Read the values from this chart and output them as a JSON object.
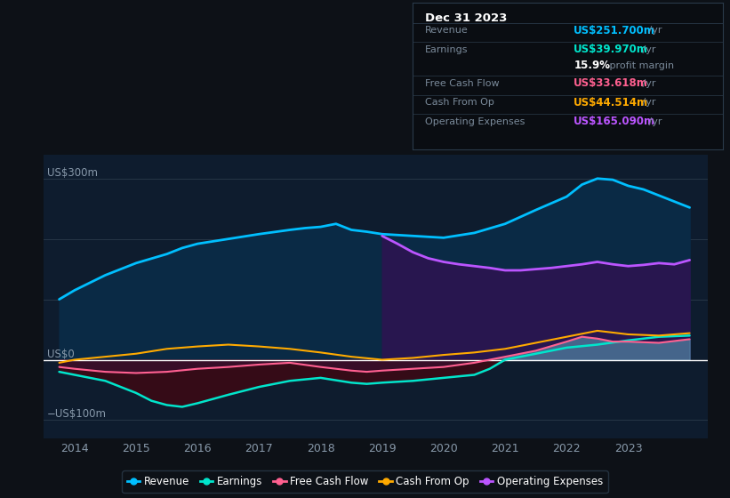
{
  "bg_color": "#0d1117",
  "plot_bg_color": "#0e1c2e",
  "colors": {
    "revenue": "#00bfff",
    "earnings": "#00e5cc",
    "free_cash_flow": "#ff6090",
    "cash_from_op": "#ffaa00",
    "op_expenses": "#bb55ff"
  },
  "legend": [
    {
      "label": "Revenue",
      "color": "#00bfff"
    },
    {
      "label": "Earnings",
      "color": "#00e5cc"
    },
    {
      "label": "Free Cash Flow",
      "color": "#ff6090"
    },
    {
      "label": "Cash From Op",
      "color": "#ffaa00"
    },
    {
      "label": "Operating Expenses",
      "color": "#bb55ff"
    }
  ],
  "xlim": [
    2013.5,
    2024.3
  ],
  "ylim": [
    -130,
    340
  ],
  "xticks": [
    2014,
    2015,
    2016,
    2017,
    2018,
    2019,
    2020,
    2021,
    2022,
    2023
  ],
  "revenue_x": [
    2013.75,
    2014.0,
    2014.5,
    2015.0,
    2015.5,
    2015.75,
    2016.0,
    2016.5,
    2017.0,
    2017.5,
    2017.75,
    2018.0,
    2018.25,
    2018.5,
    2018.75,
    2019.0,
    2019.5,
    2020.0,
    2020.5,
    2021.0,
    2021.5,
    2022.0,
    2022.25,
    2022.5,
    2022.75,
    2023.0,
    2023.25,
    2023.5,
    2023.75,
    2024.0
  ],
  "revenue_y": [
    100,
    115,
    140,
    160,
    175,
    185,
    192,
    200,
    208,
    215,
    218,
    220,
    225,
    215,
    212,
    208,
    205,
    202,
    210,
    225,
    248,
    270,
    290,
    300,
    298,
    288,
    282,
    272,
    262,
    252
  ],
  "earnings_x": [
    2013.75,
    2014.0,
    2014.5,
    2015.0,
    2015.25,
    2015.5,
    2015.75,
    2016.0,
    2016.5,
    2017.0,
    2017.5,
    2018.0,
    2018.5,
    2018.75,
    2019.0,
    2019.5,
    2020.0,
    2020.5,
    2020.75,
    2021.0,
    2021.5,
    2022.0,
    2022.5,
    2023.0,
    2023.5,
    2024.0
  ],
  "earnings_y": [
    -20,
    -25,
    -35,
    -55,
    -68,
    -75,
    -78,
    -72,
    -58,
    -45,
    -35,
    -30,
    -38,
    -40,
    -38,
    -35,
    -30,
    -25,
    -15,
    0,
    10,
    20,
    25,
    32,
    38,
    40
  ],
  "fcf_x": [
    2013.75,
    2014.0,
    2014.5,
    2015.0,
    2015.5,
    2016.0,
    2016.5,
    2017.0,
    2017.5,
    2018.0,
    2018.5,
    2018.75,
    2019.0,
    2019.5,
    2020.0,
    2020.5,
    2021.0,
    2021.5,
    2022.0,
    2022.25,
    2022.5,
    2022.75,
    2023.0,
    2023.5,
    2024.0
  ],
  "fcf_y": [
    -12,
    -15,
    -20,
    -22,
    -20,
    -15,
    -12,
    -8,
    -5,
    -12,
    -18,
    -20,
    -18,
    -15,
    -12,
    -5,
    5,
    15,
    30,
    38,
    35,
    30,
    30,
    28,
    34
  ],
  "cop_x": [
    2013.75,
    2014.0,
    2014.5,
    2015.0,
    2015.5,
    2016.0,
    2016.5,
    2017.0,
    2017.5,
    2018.0,
    2018.5,
    2019.0,
    2019.5,
    2020.0,
    2020.5,
    2021.0,
    2021.5,
    2022.0,
    2022.5,
    2023.0,
    2023.5,
    2024.0
  ],
  "cop_y": [
    -5,
    0,
    5,
    10,
    18,
    22,
    25,
    22,
    18,
    12,
    5,
    0,
    3,
    8,
    12,
    18,
    28,
    38,
    48,
    42,
    40,
    44
  ],
  "opex_x": [
    2019.0,
    2019.25,
    2019.5,
    2019.75,
    2020.0,
    2020.25,
    2020.5,
    2020.75,
    2021.0,
    2021.25,
    2021.5,
    2021.75,
    2022.0,
    2022.25,
    2022.5,
    2022.75,
    2023.0,
    2023.25,
    2023.5,
    2023.75,
    2024.0
  ],
  "opex_y": [
    205,
    192,
    178,
    168,
    162,
    158,
    155,
    152,
    148,
    148,
    150,
    152,
    155,
    158,
    162,
    158,
    155,
    157,
    160,
    158,
    165
  ]
}
